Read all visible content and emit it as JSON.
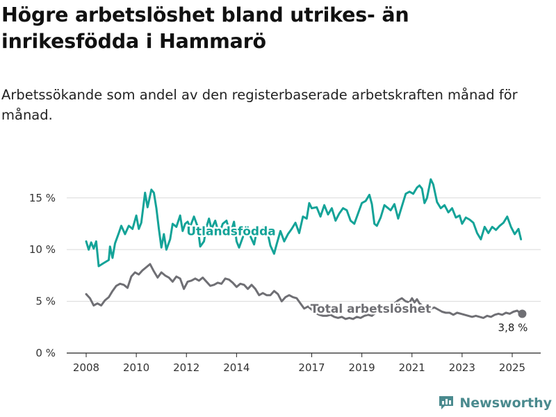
{
  "title": "Högre arbetslöshet bland utrikes- än inrikesfödda i Hammarö",
  "subtitle": "Arbetssökande som andel av den registerbaserade arbetskraften månad för månad.",
  "brand": "Newsworthy",
  "colors": {
    "foreign": "#14a398",
    "total": "#6f6f74",
    "grid": "#d9d9d9",
    "brand": "#4a8a8e"
  },
  "chart_data": {
    "type": "line",
    "ylim": [
      0,
      17
    ],
    "xlim": [
      2007.6,
      2025.75
    ],
    "y_ticks": [
      {
        "value": 0,
        "label": "0 %"
      },
      {
        "value": 5,
        "label": "5 %"
      },
      {
        "value": 10,
        "label": "10 %"
      },
      {
        "value": 15,
        "label": "15 %"
      }
    ],
    "x_ticks": [
      {
        "value": 2008,
        "label": "2008"
      },
      {
        "value": 2010,
        "label": "2010"
      },
      {
        "value": 2012,
        "label": "2012"
      },
      {
        "value": 2014,
        "label": "2014"
      },
      {
        "value": 2017,
        "label": "2017"
      },
      {
        "value": 2019,
        "label": "2019"
      },
      {
        "value": 2021,
        "label": "2021"
      },
      {
        "value": 2023,
        "label": "2023"
      },
      {
        "value": 2025,
        "label": "2025"
      }
    ],
    "grid": true,
    "series": [
      {
        "name": "Utlandsfödda",
        "color": "#14a398",
        "points": [
          [
            2008.0,
            10.8
          ],
          [
            2008.1,
            10.0
          ],
          [
            2008.2,
            10.7
          ],
          [
            2008.3,
            10.1
          ],
          [
            2008.4,
            10.8
          ],
          [
            2008.5,
            8.4
          ],
          [
            2008.7,
            8.7
          ],
          [
            2008.9,
            9.0
          ],
          [
            2008.95,
            10.3
          ],
          [
            2009.05,
            9.2
          ],
          [
            2009.15,
            10.6
          ],
          [
            2009.3,
            11.6
          ],
          [
            2009.4,
            12.3
          ],
          [
            2009.55,
            11.5
          ],
          [
            2009.7,
            12.3
          ],
          [
            2009.85,
            12.0
          ],
          [
            2010.0,
            13.3
          ],
          [
            2010.1,
            12.0
          ],
          [
            2010.2,
            12.6
          ],
          [
            2010.35,
            15.5
          ],
          [
            2010.45,
            14.1
          ],
          [
            2010.6,
            15.8
          ],
          [
            2010.7,
            15.5
          ],
          [
            2010.8,
            14.0
          ],
          [
            2010.9,
            12.0
          ],
          [
            2011.0,
            10.2
          ],
          [
            2011.1,
            11.5
          ],
          [
            2011.2,
            10.0
          ],
          [
            2011.35,
            11.0
          ],
          [
            2011.45,
            12.5
          ],
          [
            2011.6,
            12.2
          ],
          [
            2011.75,
            13.3
          ],
          [
            2011.85,
            11.8
          ],
          [
            2011.95,
            12.5
          ],
          [
            2012.05,
            12.7
          ],
          [
            2012.15,
            12.2
          ],
          [
            2012.3,
            13.2
          ],
          [
            2012.45,
            12.2
          ],
          [
            2012.55,
            10.3
          ],
          [
            2012.7,
            10.8
          ],
          [
            2012.8,
            12.2
          ],
          [
            2012.9,
            13.0
          ],
          [
            2013.0,
            12.0
          ],
          [
            2013.15,
            12.8
          ],
          [
            2013.3,
            11.5
          ],
          [
            2013.45,
            12.5
          ],
          [
            2013.6,
            12.8
          ],
          [
            2013.75,
            11.5
          ],
          [
            2013.9,
            12.7
          ],
          [
            2014.0,
            10.8
          ],
          [
            2014.1,
            10.2
          ],
          [
            2014.25,
            11.2
          ],
          [
            2014.4,
            12.2
          ],
          [
            2014.55,
            11.3
          ],
          [
            2014.7,
            10.5
          ],
          [
            2014.85,
            12.3
          ],
          [
            2015.0,
            11.5
          ],
          [
            2015.1,
            12.3
          ],
          [
            2015.2,
            12.1
          ],
          [
            2015.35,
            10.4
          ],
          [
            2015.5,
            9.6
          ],
          [
            2015.6,
            10.5
          ],
          [
            2015.75,
            11.8
          ],
          [
            2015.9,
            10.8
          ],
          [
            2016.05,
            11.5
          ],
          [
            2016.2,
            12.0
          ],
          [
            2016.35,
            12.6
          ],
          [
            2016.5,
            11.6
          ],
          [
            2016.65,
            13.2
          ],
          [
            2016.8,
            13.0
          ],
          [
            2016.9,
            14.5
          ],
          [
            2017.0,
            14.0
          ],
          [
            2017.2,
            14.1
          ],
          [
            2017.35,
            13.2
          ],
          [
            2017.5,
            14.3
          ],
          [
            2017.65,
            13.4
          ],
          [
            2017.8,
            14.0
          ],
          [
            2017.95,
            12.8
          ],
          [
            2018.1,
            13.5
          ],
          [
            2018.25,
            14.0
          ],
          [
            2018.4,
            13.8
          ],
          [
            2018.55,
            12.8
          ],
          [
            2018.7,
            12.5
          ],
          [
            2018.85,
            13.5
          ],
          [
            2019.0,
            14.5
          ],
          [
            2019.15,
            14.7
          ],
          [
            2019.3,
            15.3
          ],
          [
            2019.4,
            14.4
          ],
          [
            2019.5,
            12.5
          ],
          [
            2019.6,
            12.3
          ],
          [
            2019.75,
            13.1
          ],
          [
            2019.9,
            14.3
          ],
          [
            2020.05,
            14.0
          ],
          [
            2020.15,
            13.8
          ],
          [
            2020.3,
            14.4
          ],
          [
            2020.45,
            13.0
          ],
          [
            2020.6,
            14.2
          ],
          [
            2020.75,
            15.4
          ],
          [
            2020.9,
            15.6
          ],
          [
            2021.05,
            15.4
          ],
          [
            2021.2,
            16.0
          ],
          [
            2021.3,
            16.2
          ],
          [
            2021.4,
            15.9
          ],
          [
            2021.5,
            14.5
          ],
          [
            2021.6,
            15.0
          ],
          [
            2021.75,
            16.8
          ],
          [
            2021.85,
            16.3
          ],
          [
            2022.0,
            14.6
          ],
          [
            2022.15,
            14.0
          ],
          [
            2022.3,
            14.3
          ],
          [
            2022.45,
            13.6
          ],
          [
            2022.6,
            14.0
          ],
          [
            2022.75,
            13.1
          ],
          [
            2022.9,
            13.3
          ],
          [
            2023.0,
            12.5
          ],
          [
            2023.15,
            13.1
          ],
          [
            2023.3,
            12.9
          ],
          [
            2023.45,
            12.6
          ],
          [
            2023.6,
            11.6
          ],
          [
            2023.75,
            11.0
          ],
          [
            2023.9,
            12.2
          ],
          [
            2024.05,
            11.6
          ],
          [
            2024.2,
            12.2
          ],
          [
            2024.35,
            11.9
          ],
          [
            2024.5,
            12.3
          ],
          [
            2024.65,
            12.6
          ],
          [
            2024.8,
            13.2
          ],
          [
            2024.95,
            12.2
          ],
          [
            2025.1,
            11.5
          ],
          [
            2025.25,
            12.0
          ],
          [
            2025.35,
            11.0
          ]
        ]
      },
      {
        "name": "Total arbetslöshet",
        "color": "#6f6f74",
        "points": [
          [
            2008.0,
            5.7
          ],
          [
            2008.15,
            5.3
          ],
          [
            2008.3,
            4.6
          ],
          [
            2008.45,
            4.8
          ],
          [
            2008.6,
            4.6
          ],
          [
            2008.75,
            5.1
          ],
          [
            2008.9,
            5.4
          ],
          [
            2009.05,
            6.0
          ],
          [
            2009.2,
            6.5
          ],
          [
            2009.35,
            6.7
          ],
          [
            2009.5,
            6.6
          ],
          [
            2009.65,
            6.3
          ],
          [
            2009.8,
            7.4
          ],
          [
            2009.95,
            7.8
          ],
          [
            2010.1,
            7.6
          ],
          [
            2010.25,
            8.0
          ],
          [
            2010.4,
            8.3
          ],
          [
            2010.55,
            8.6
          ],
          [
            2010.7,
            7.9
          ],
          [
            2010.85,
            7.3
          ],
          [
            2011.0,
            7.8
          ],
          [
            2011.15,
            7.5
          ],
          [
            2011.3,
            7.3
          ],
          [
            2011.45,
            6.9
          ],
          [
            2011.6,
            7.4
          ],
          [
            2011.75,
            7.2
          ],
          [
            2011.9,
            6.2
          ],
          [
            2012.05,
            6.9
          ],
          [
            2012.2,
            7.0
          ],
          [
            2012.35,
            7.2
          ],
          [
            2012.5,
            7.0
          ],
          [
            2012.65,
            7.3
          ],
          [
            2012.8,
            6.9
          ],
          [
            2012.95,
            6.5
          ],
          [
            2013.1,
            6.6
          ],
          [
            2013.25,
            6.8
          ],
          [
            2013.4,
            6.7
          ],
          [
            2013.55,
            7.2
          ],
          [
            2013.7,
            7.1
          ],
          [
            2013.85,
            6.8
          ],
          [
            2014.0,
            6.4
          ],
          [
            2014.15,
            6.7
          ],
          [
            2014.3,
            6.6
          ],
          [
            2014.45,
            6.2
          ],
          [
            2014.6,
            6.6
          ],
          [
            2014.75,
            6.2
          ],
          [
            2014.9,
            5.6
          ],
          [
            2015.05,
            5.8
          ],
          [
            2015.2,
            5.6
          ],
          [
            2015.35,
            5.6
          ],
          [
            2015.5,
            6.0
          ],
          [
            2015.65,
            5.7
          ],
          [
            2015.8,
            5.0
          ],
          [
            2015.95,
            5.4
          ],
          [
            2016.1,
            5.6
          ],
          [
            2016.25,
            5.4
          ],
          [
            2016.4,
            5.3
          ],
          [
            2016.55,
            4.8
          ],
          [
            2016.7,
            4.3
          ],
          [
            2016.85,
            4.5
          ],
          [
            2017.0,
            4.2
          ],
          [
            2017.15,
            3.9
          ],
          [
            2017.3,
            3.7
          ],
          [
            2017.45,
            3.6
          ],
          [
            2017.6,
            3.6
          ],
          [
            2017.75,
            3.7
          ],
          [
            2017.9,
            3.5
          ],
          [
            2018.05,
            3.4
          ],
          [
            2018.2,
            3.5
          ],
          [
            2018.35,
            3.3
          ],
          [
            2018.5,
            3.4
          ],
          [
            2018.65,
            3.3
          ],
          [
            2018.8,
            3.5
          ],
          [
            2018.95,
            3.4
          ],
          [
            2019.1,
            3.6
          ],
          [
            2019.25,
            3.7
          ],
          [
            2019.4,
            3.6
          ],
          [
            2019.55,
            3.9
          ],
          [
            2019.7,
            4.0
          ],
          [
            2019.85,
            4.2
          ],
          [
            2020.0,
            4.4
          ],
          [
            2020.15,
            4.6
          ],
          [
            2020.3,
            4.8
          ],
          [
            2020.45,
            5.1
          ],
          [
            2020.6,
            5.3
          ],
          [
            2020.75,
            5.0
          ],
          [
            2020.9,
            4.9
          ],
          [
            2021.0,
            5.3
          ],
          [
            2021.1,
            4.9
          ],
          [
            2021.2,
            5.2
          ],
          [
            2021.3,
            4.8
          ],
          [
            2021.45,
            4.5
          ],
          [
            2021.6,
            4.4
          ],
          [
            2021.75,
            4.3
          ],
          [
            2021.9,
            4.4
          ],
          [
            2022.05,
            4.2
          ],
          [
            2022.2,
            4.0
          ],
          [
            2022.35,
            3.9
          ],
          [
            2022.5,
            3.9
          ],
          [
            2022.65,
            3.7
          ],
          [
            2022.8,
            3.9
          ],
          [
            2022.95,
            3.8
          ],
          [
            2023.1,
            3.7
          ],
          [
            2023.25,
            3.6
          ],
          [
            2023.4,
            3.5
          ],
          [
            2023.55,
            3.6
          ],
          [
            2023.7,
            3.5
          ],
          [
            2023.85,
            3.4
          ],
          [
            2024.0,
            3.6
          ],
          [
            2024.15,
            3.5
          ],
          [
            2024.3,
            3.7
          ],
          [
            2024.45,
            3.8
          ],
          [
            2024.6,
            3.7
          ],
          [
            2024.75,
            3.9
          ],
          [
            2024.9,
            3.8
          ],
          [
            2025.05,
            4.0
          ],
          [
            2025.2,
            4.1
          ],
          [
            2025.3,
            3.9
          ],
          [
            2025.4,
            3.8
          ]
        ]
      }
    ],
    "annotations": {
      "foreign_label": "Utlandsfödda",
      "total_label": "Total arbetslöshet",
      "end_value_label": "3,8 %"
    }
  }
}
